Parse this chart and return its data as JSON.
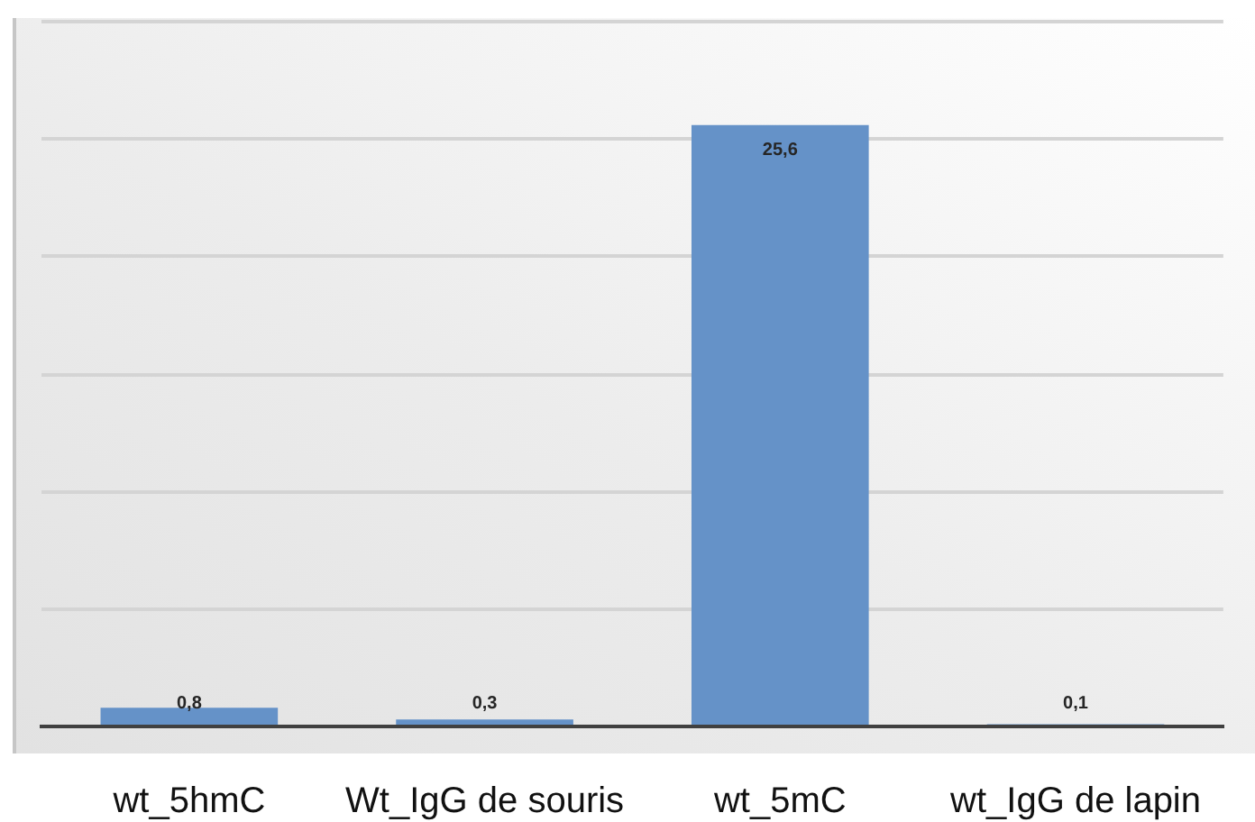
{
  "chart_data": {
    "type": "bar",
    "categories": [
      "wt_5hmC",
      "Wt_IgG de souris",
      "wt_5mC",
      "wt_IgG de lapin"
    ],
    "values": [
      0.8,
      0.3,
      25.6,
      0.1
    ],
    "color": "#6592c8",
    "value_labels": [
      "0,8",
      "0,3",
      "25,6",
      "0,1"
    ],
    "grid": "y",
    "tick_labels": "x"
  }
}
